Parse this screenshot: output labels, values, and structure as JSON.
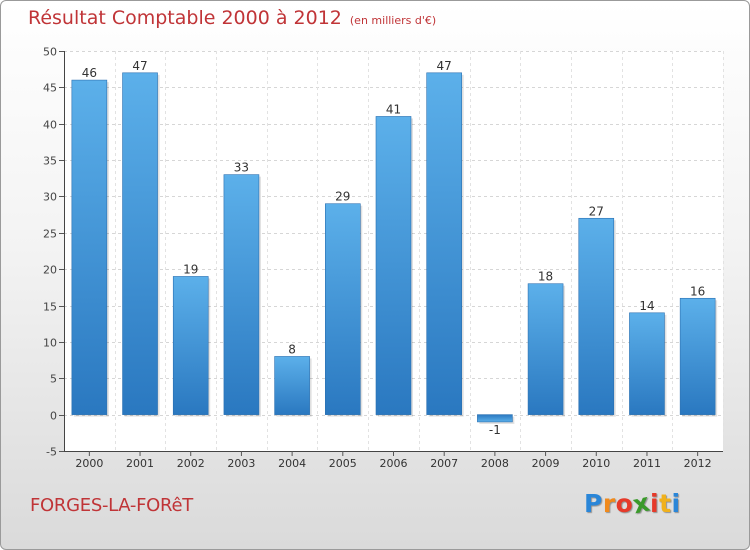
{
  "chart_data": {
    "type": "bar",
    "title": "Résultat Comptable 2000 à 2012",
    "subtitle": "(en milliers d'€)",
    "categories": [
      "2000",
      "2001",
      "2002",
      "2003",
      "2004",
      "2005",
      "2006",
      "2007",
      "2008",
      "2009",
      "2010",
      "2011",
      "2012"
    ],
    "values": [
      46,
      47,
      19,
      33,
      8,
      29,
      41,
      47,
      -1,
      18,
      27,
      14,
      16
    ],
    "data_labels": [
      "46",
      "47",
      "19",
      "33",
      "8",
      "29",
      "41",
      "47",
      "-1",
      "18",
      "27",
      "14",
      "16"
    ],
    "y_ticks": [
      -5,
      0,
      5,
      10,
      15,
      20,
      25,
      30,
      35,
      40,
      45,
      50
    ],
    "ylim": [
      -5,
      50
    ],
    "xlabel": "",
    "ylabel": "",
    "grid": true,
    "bar_color": "#4a9ee0",
    "title_color": "#c03437"
  },
  "footer": {
    "commune": "FORGES-LA-FORêT"
  },
  "logo": {
    "text": "Proxiti",
    "letters": [
      "P",
      "r",
      "o",
      "x",
      "i",
      "t",
      "i"
    ],
    "letter_colors": [
      "#2a86d8",
      "#f08a1c",
      "#e63a2a",
      "#3a9a2a",
      "#e63a2a",
      "#f0b11c",
      "#2a86d8"
    ]
  }
}
